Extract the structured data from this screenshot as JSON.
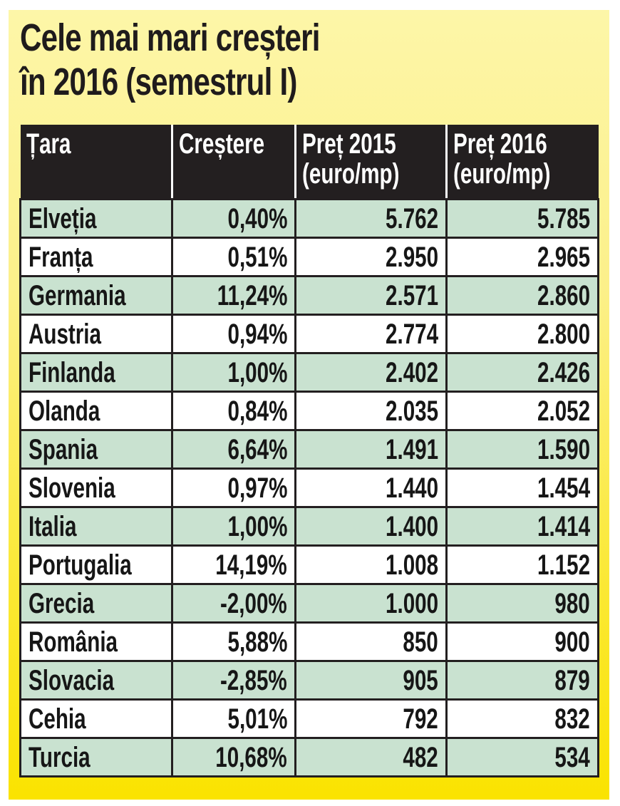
{
  "title": {
    "line1": "Cele mai mari creșteri",
    "line2": "în 2016 (semestrul I)"
  },
  "colors": {
    "panel_top": "#fdf6a8",
    "panel_bottom": "#fae300",
    "header_bg": "#231f20",
    "header_text": "#ffffff",
    "row_alt_bg": "#c9e2d0",
    "row_bg": "#ffffff"
  },
  "table": {
    "headers": [
      {
        "label": "Țara",
        "sub": ""
      },
      {
        "label": "Creștere",
        "sub": ""
      },
      {
        "label": "Preț 2015",
        "sub": "(euro/mp)"
      },
      {
        "label": "Preț 2016",
        "sub": "(euro/mp)"
      }
    ],
    "rows": [
      {
        "country": "Elveția",
        "growth": "0,40%",
        "price_2015": "5.762",
        "price_2016": "5.785"
      },
      {
        "country": "Franța",
        "growth": "0,51%",
        "price_2015": "2.950",
        "price_2016": "2.965"
      },
      {
        "country": "Germania",
        "growth": "11,24%",
        "price_2015": "2.571",
        "price_2016": "2.860"
      },
      {
        "country": "Austria",
        "growth": "0,94%",
        "price_2015": "2.774",
        "price_2016": "2.800"
      },
      {
        "country": "Finlanda",
        "growth": "1,00%",
        "price_2015": "2.402",
        "price_2016": "2.426"
      },
      {
        "country": "Olanda",
        "growth": "0,84%",
        "price_2015": "2.035",
        "price_2016": "2.052"
      },
      {
        "country": "Spania",
        "growth": "6,64%",
        "price_2015": "1.491",
        "price_2016": "1.590"
      },
      {
        "country": "Slovenia",
        "growth": "0,97%",
        "price_2015": "1.440",
        "price_2016": "1.454"
      },
      {
        "country": "Italia",
        "growth": "1,00%",
        "price_2015": "1.400",
        "price_2016": "1.414"
      },
      {
        "country": "Portugalia",
        "growth": "14,19%",
        "price_2015": "1.008",
        "price_2016": "1.152"
      },
      {
        "country": "Grecia",
        "growth": "-2,00%",
        "price_2015": "1.000",
        "price_2016": "980"
      },
      {
        "country": "România",
        "growth": "5,88%",
        "price_2015": "850",
        "price_2016": "900"
      },
      {
        "country": "Slovacia",
        "growth": "-2,85%",
        "price_2015": "905",
        "price_2016": "879"
      },
      {
        "country": "Cehia",
        "growth": "5,01%",
        "price_2015": "792",
        "price_2016": "832"
      },
      {
        "country": "Turcia",
        "growth": "10,68%",
        "price_2015": "482",
        "price_2016": "534"
      }
    ]
  }
}
